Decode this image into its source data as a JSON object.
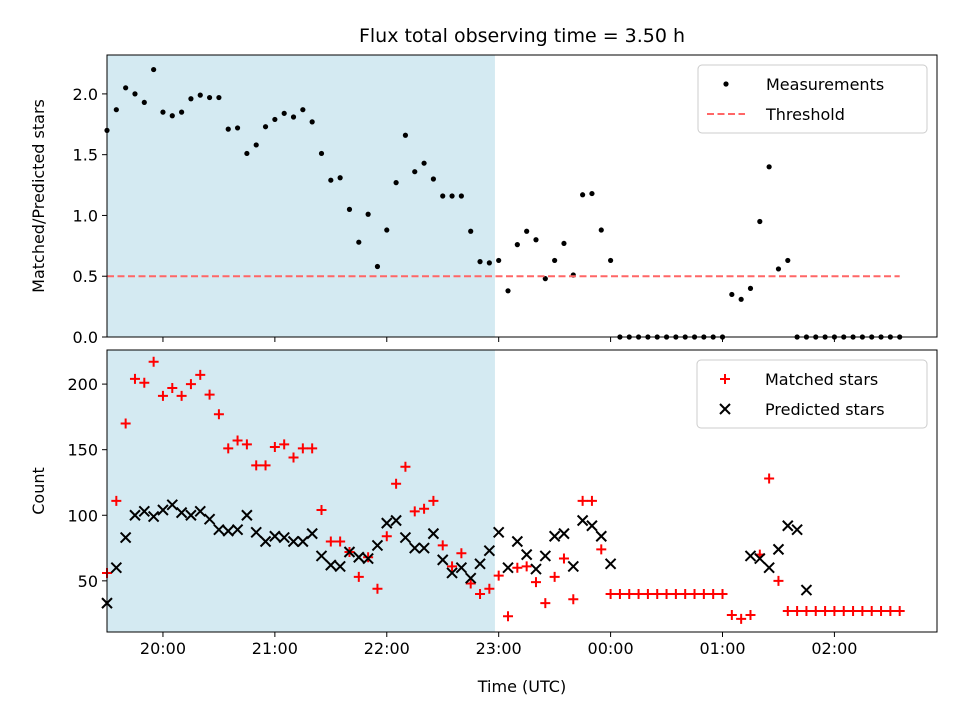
{
  "chart_data": [
    {
      "type": "scatter",
      "title": "Flux total observing time = 3.50 h",
      "xlabel": "",
      "ylabel": "Matched/Predicted stars",
      "xlim": [
        "19:30",
        "02:55"
      ],
      "ylim": [
        0,
        2.32
      ],
      "yticks": [
        "0.0",
        "0.5",
        "1.0",
        "1.5",
        "2.0"
      ],
      "xticks": [
        "20:00",
        "21:00",
        "22:00",
        "23:00",
        "00:00",
        "01:00",
        "02:00"
      ],
      "shaded_span": {
        "start": "19:30",
        "end": "22:58",
        "color": "#add8e6"
      },
      "legend": "top-right",
      "series": [
        {
          "name": "Measurements",
          "marker": "dot",
          "color": "#000000",
          "x": [
            "19:30",
            "19:35",
            "19:40",
            "19:45",
            "19:50",
            "19:55",
            "20:00",
            "20:05",
            "20:10",
            "20:15",
            "20:20",
            "20:25",
            "20:30",
            "20:35",
            "20:40",
            "20:45",
            "20:50",
            "20:55",
            "21:00",
            "21:05",
            "21:10",
            "21:15",
            "21:20",
            "21:25",
            "21:30",
            "21:35",
            "21:40",
            "21:45",
            "21:50",
            "21:55",
            "22:00",
            "22:05",
            "22:10",
            "22:15",
            "22:20",
            "22:25",
            "22:30",
            "22:35",
            "22:40",
            "22:45",
            "22:50",
            "22:55",
            "23:00",
            "23:05",
            "23:10",
            "23:15",
            "23:20",
            "23:25",
            "23:30",
            "23:35",
            "23:40",
            "23:45",
            "23:50",
            "23:55",
            "00:00",
            "00:05",
            "00:10",
            "00:15",
            "00:20",
            "00:25",
            "00:30",
            "00:35",
            "00:40",
            "00:45",
            "00:50",
            "00:55",
            "01:00",
            "01:05",
            "01:10",
            "01:15",
            "01:20",
            "01:25",
            "01:30",
            "01:35",
            "01:40",
            "01:45",
            "01:50",
            "01:55",
            "02:00",
            "02:05",
            "02:10",
            "02:15",
            "02:20",
            "02:25",
            "02:30",
            "02:35"
          ],
          "y": [
            1.7,
            1.87,
            2.05,
            2.0,
            1.93,
            2.2,
            1.85,
            1.82,
            1.85,
            1.96,
            1.99,
            1.97,
            1.97,
            1.71,
            1.72,
            1.51,
            1.58,
            1.73,
            1.79,
            1.84,
            1.81,
            1.87,
            1.77,
            1.51,
            1.29,
            1.31,
            1.05,
            0.78,
            1.01,
            0.58,
            0.88,
            1.27,
            1.66,
            1.36,
            1.43,
            1.3,
            1.16,
            1.16,
            1.16,
            0.87,
            0.62,
            0.61,
            0.63,
            0.38,
            0.76,
            0.87,
            0.8,
            0.48,
            0.63,
            0.77,
            0.51,
            1.17,
            1.18,
            0.88,
            0.63,
            0.0,
            0.0,
            0.0,
            0.0,
            0.0,
            0.0,
            0.0,
            0.0,
            0.0,
            0.0,
            0.0,
            0.0,
            0.35,
            0.31,
            0.4,
            0.95,
            1.4,
            0.56,
            0.63,
            0.0,
            0.0,
            0.0,
            0.0,
            0.0,
            0.0,
            0.0,
            0.0,
            0.0,
            0.0,
            0.0,
            0.0
          ]
        },
        {
          "name": "Threshold",
          "style": "dashed",
          "color": "#ff6666",
          "x": [
            "19:30",
            "02:35"
          ],
          "y": [
            0.5,
            0.5
          ]
        }
      ]
    },
    {
      "type": "scatter",
      "title": "",
      "xlabel": "Time (UTC)",
      "ylabel": "Count",
      "xlim": [
        "19:30",
        "02:55"
      ],
      "ylim": [
        11,
        226
      ],
      "yticks": [
        "50",
        "100",
        "150",
        "200"
      ],
      "xticks": [
        "20:00",
        "21:00",
        "22:00",
        "23:00",
        "00:00",
        "01:00",
        "02:00"
      ],
      "shaded_span": {
        "start": "19:30",
        "end": "22:58",
        "color": "#add8e6"
      },
      "legend": "top-right",
      "series": [
        {
          "name": "Matched stars",
          "marker": "plus",
          "color": "#ff0000",
          "x": [
            "19:30",
            "19:35",
            "19:40",
            "19:45",
            "19:50",
            "19:55",
            "20:00",
            "20:05",
            "20:10",
            "20:15",
            "20:20",
            "20:25",
            "20:30",
            "20:35",
            "20:40",
            "20:45",
            "20:50",
            "20:55",
            "21:00",
            "21:05",
            "21:10",
            "21:15",
            "21:20",
            "21:25",
            "21:30",
            "21:35",
            "21:40",
            "21:45",
            "21:50",
            "21:55",
            "22:00",
            "22:05",
            "22:10",
            "22:15",
            "22:20",
            "22:25",
            "22:30",
            "22:35",
            "22:40",
            "22:45",
            "22:50",
            "22:55",
            "23:00",
            "23:05",
            "23:10",
            "23:15",
            "23:20",
            "23:25",
            "23:30",
            "23:35",
            "23:40",
            "23:45",
            "23:50",
            "23:55",
            "00:00",
            "00:05",
            "00:10",
            "00:15",
            "00:20",
            "00:25",
            "00:30",
            "00:35",
            "00:40",
            "00:45",
            "00:50",
            "00:55",
            "01:00",
            "01:05",
            "01:10",
            "01:15",
            "01:20",
            "01:25",
            "01:30",
            "01:35",
            "01:40",
            "01:45",
            "01:50",
            "01:55",
            "02:00",
            "02:05",
            "02:10",
            "02:15",
            "02:20",
            "02:25",
            "02:30",
            "02:35"
          ],
          "y": [
            56,
            111,
            170,
            204,
            201,
            217,
            191,
            197,
            191,
            200,
            207,
            192,
            177,
            151,
            157,
            154,
            138,
            138,
            152,
            154,
            144,
            151,
            151,
            104,
            80,
            80,
            72,
            53,
            68,
            44,
            84,
            124,
            137,
            103,
            105,
            111,
            77,
            61,
            71,
            48,
            40,
            44,
            54,
            23,
            60,
            61,
            49,
            33,
            53,
            67,
            36,
            111,
            111,
            74,
            40,
            40,
            40,
            40,
            40,
            40,
            40,
            40,
            40,
            40,
            40,
            40,
            40,
            24,
            21,
            24,
            70,
            128,
            50,
            27,
            27,
            27,
            27,
            27,
            27,
            27,
            27,
            27,
            27,
            27,
            27,
            27
          ]
        },
        {
          "name": "Predicted stars",
          "marker": "x",
          "color": "#000000",
          "x": [
            "19:30",
            "19:35",
            "19:40",
            "19:45",
            "19:50",
            "19:55",
            "20:00",
            "20:05",
            "20:10",
            "20:15",
            "20:20",
            "20:25",
            "20:30",
            "20:35",
            "20:40",
            "20:45",
            "20:50",
            "20:55",
            "21:00",
            "21:05",
            "21:10",
            "21:15",
            "21:20",
            "21:25",
            "21:30",
            "21:35",
            "21:40",
            "21:45",
            "21:50",
            "21:55",
            "22:00",
            "22:05",
            "22:10",
            "22:15",
            "22:20",
            "22:25",
            "22:30",
            "22:35",
            "22:40",
            "22:45",
            "22:50",
            "22:55",
            "23:00",
            "23:05",
            "23:10",
            "23:15",
            "23:20",
            "23:25",
            "23:30",
            "23:35",
            "23:40",
            "23:45",
            "23:50",
            "23:55",
            "00:00",
            "01:15",
            "01:20",
            "01:25",
            "01:30",
            "01:35",
            "01:40",
            "01:45"
          ],
          "y": [
            33,
            60,
            83,
            100,
            103,
            99,
            104,
            108,
            102,
            100,
            103,
            97,
            89,
            88,
            89,
            100,
            87,
            80,
            84,
            83,
            80,
            80,
            86,
            69,
            62,
            61,
            72,
            68,
            67,
            77,
            94,
            96,
            83,
            75,
            75,
            86,
            66,
            56,
            60,
            52,
            63,
            73,
            87,
            60,
            80,
            70,
            59,
            69,
            84,
            86,
            61,
            96,
            92,
            84,
            63,
            69,
            67,
            60,
            74,
            92,
            89,
            43
          ]
        }
      ]
    }
  ]
}
